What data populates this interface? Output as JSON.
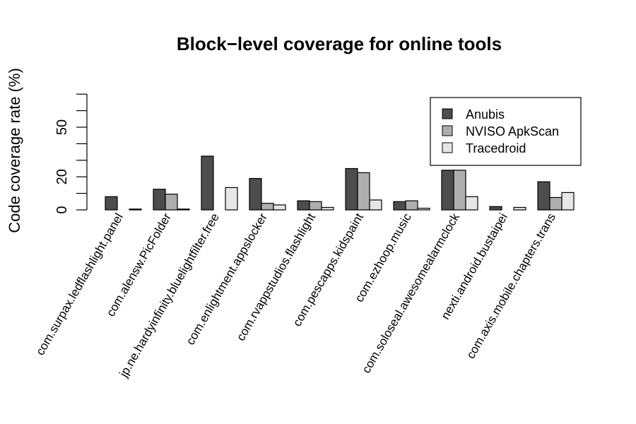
{
  "chart_data": {
    "type": "bar",
    "title": "Block−level coverage for online tools",
    "xlabel": "",
    "ylabel": "Code coverage rate (%)",
    "ylim": [
      0,
      70
    ],
    "yticks": [
      0,
      20,
      50
    ],
    "grid": false,
    "legend_position": "top-right",
    "categories": [
      "com.surpax.ledflashlight.panel",
      "com.alensw.PicFolder",
      "jp.ne.hardyinfinity.bluelightfilter.free",
      "com.enlightment.appslocker",
      "com.rvappstudios.flashlight",
      "com.pescapps.kidspaint",
      "com.ezhoop.music",
      "com.soloseal.awesomealarmclock",
      "nexti.android.bustaipei",
      "com.axis.mobile.chapters.trans"
    ],
    "series": [
      {
        "name": "Anubis",
        "color": "#4d4d4d",
        "values": [
          8,
          12.5,
          32.5,
          19,
          5.5,
          25,
          5,
          24,
          2,
          17
        ]
      },
      {
        "name": "NVISO ApkScan",
        "color": "#aeaeae",
        "values": [
          0,
          9.5,
          0,
          4,
          5,
          22.5,
          5.5,
          24,
          0,
          7.5
        ]
      },
      {
        "name": "Tracedroid",
        "color": "#e6e6e6",
        "values": [
          0.5,
          0.5,
          13.5,
          3,
          1.5,
          6,
          1,
          8,
          1.5,
          10.5
        ]
      }
    ]
  }
}
